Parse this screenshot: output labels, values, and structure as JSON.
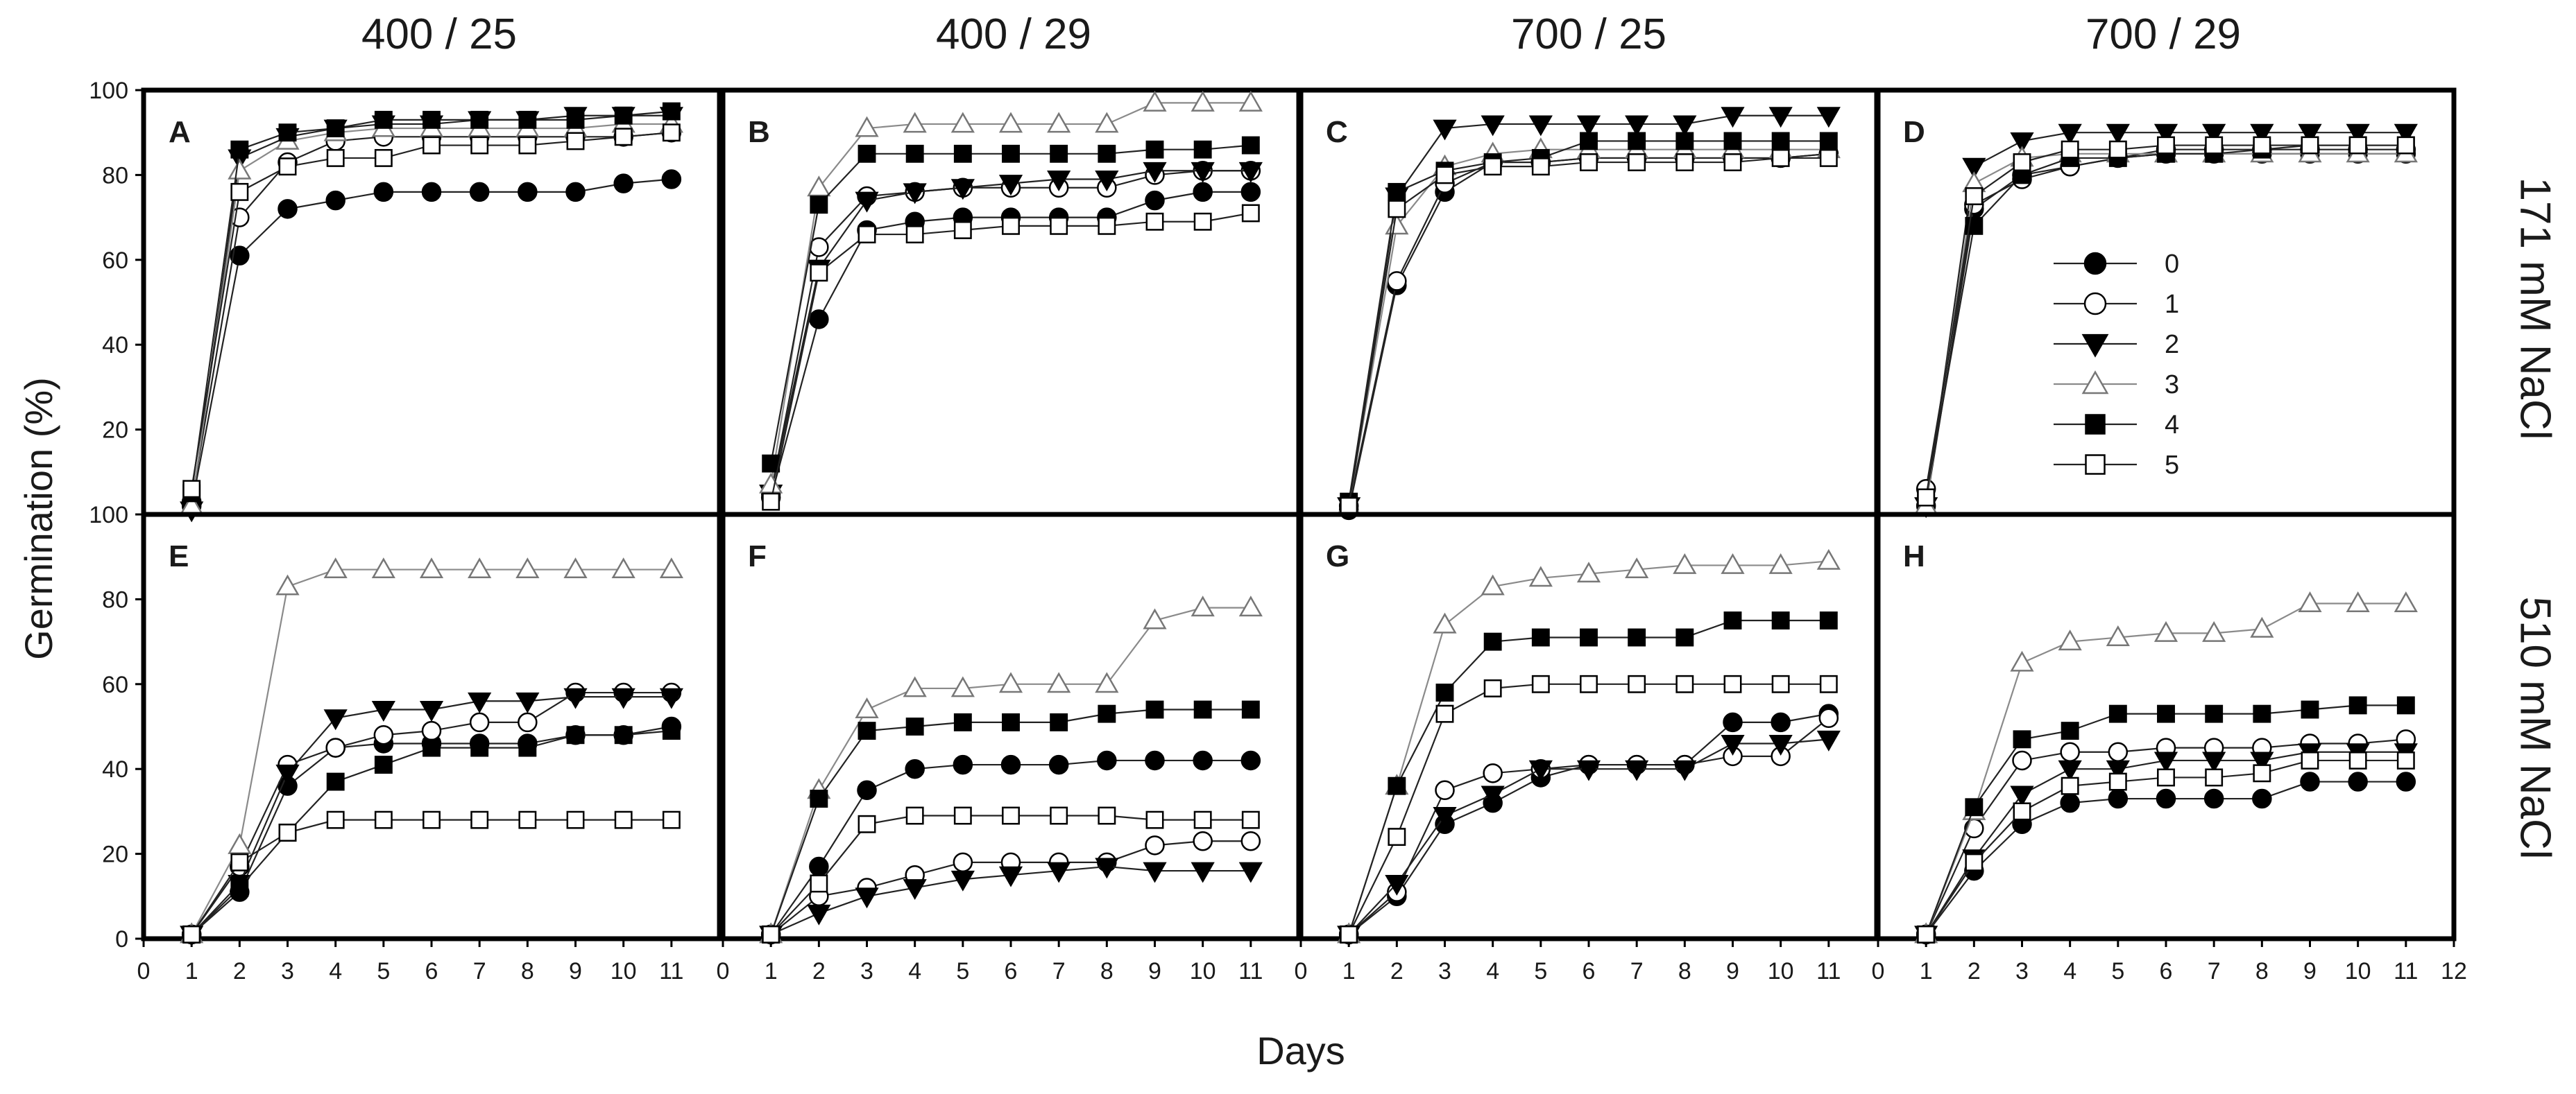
{
  "chart_data": {
    "type": "line",
    "xlabel": "Days",
    "ylabel": "Germination (%)",
    "column_titles": [
      "400 / 25",
      "400 / 29",
      "700 / 25",
      "700 / 29"
    ],
    "row_titles": [
      "171 mM NaCl",
      "510 mM NaCl"
    ],
    "xlim": [
      0,
      12
    ],
    "ylim": [
      0,
      100
    ],
    "x_ticks": [
      0,
      1,
      2,
      3,
      4,
      5,
      6,
      7,
      8,
      9,
      10,
      11
    ],
    "x_ticks_last_panel": [
      0,
      1,
      2,
      3,
      4,
      5,
      6,
      7,
      8,
      9,
      10,
      11,
      12
    ],
    "y_ticks": [
      0,
      20,
      40,
      60,
      80,
      100
    ],
    "x": [
      1,
      2,
      3,
      4,
      5,
      6,
      7,
      8,
      9,
      10,
      11
    ],
    "legend": {
      "position": "inside panel D, right side",
      "entries": [
        {
          "label": "0",
          "marker": "circle",
          "filled": true
        },
        {
          "label": "1",
          "marker": "circle",
          "filled": false
        },
        {
          "label": "2",
          "marker": "triangle-down",
          "filled": true
        },
        {
          "label": "3",
          "marker": "triangle-up",
          "filled": false
        },
        {
          "label": "4",
          "marker": "square",
          "filled": true
        },
        {
          "label": "5",
          "marker": "square",
          "filled": false
        }
      ]
    },
    "panels": [
      {
        "id": "A",
        "row": 0,
        "col": 0,
        "series": [
          {
            "name": "0",
            "values": [
              2,
              61,
              72,
              74,
              76,
              76,
              76,
              76,
              76,
              78,
              79
            ]
          },
          {
            "name": "1",
            "values": [
              3,
              70,
              83,
              88,
              89,
              89,
              89,
              89,
              89,
              89,
              90
            ]
          },
          {
            "name": "2",
            "values": [
              1,
              84,
              89,
              91,
              92,
              92,
              93,
              93,
              94,
              94,
              94
            ]
          },
          {
            "name": "3",
            "values": [
              2,
              81,
              88,
              90,
              91,
              91,
              91,
              91,
              91,
              92,
              92
            ]
          },
          {
            "name": "4",
            "values": [
              5,
              86,
              90,
              91,
              93,
              93,
              93,
              93,
              93,
              94,
              95
            ]
          },
          {
            "name": "5",
            "values": [
              6,
              76,
              82,
              84,
              84,
              87,
              87,
              87,
              88,
              89,
              90
            ]
          }
        ]
      },
      {
        "id": "B",
        "row": 0,
        "col": 1,
        "series": [
          {
            "name": "0",
            "values": [
              4,
              46,
              67,
              69,
              70,
              70,
              70,
              70,
              74,
              76,
              76
            ]
          },
          {
            "name": "1",
            "values": [
              5,
              63,
              75,
              76,
              77,
              77,
              77,
              77,
              80,
              81,
              81
            ]
          },
          {
            "name": "2",
            "values": [
              5,
              58,
              74,
              76,
              77,
              78,
              79,
              79,
              81,
              81,
              81
            ]
          },
          {
            "name": "3",
            "values": [
              7,
              77,
              91,
              92,
              92,
              92,
              92,
              92,
              97,
              97,
              97
            ]
          },
          {
            "name": "4",
            "values": [
              12,
              73,
              85,
              85,
              85,
              85,
              85,
              85,
              86,
              86,
              87
            ]
          },
          {
            "name": "5",
            "values": [
              3,
              57,
              66,
              66,
              67,
              68,
              68,
              68,
              69,
              69,
              71
            ]
          }
        ]
      },
      {
        "id": "C",
        "row": 0,
        "col": 2,
        "series": [
          {
            "name": "0",
            "values": [
              1,
              54,
              76,
              83,
              83,
              84,
              84,
              84,
              84,
              84,
              85
            ]
          },
          {
            "name": "1",
            "values": [
              2,
              55,
              78,
              83,
              83,
              84,
              84,
              84,
              84,
              84,
              85
            ]
          },
          {
            "name": "2",
            "values": [
              2,
              75,
              91,
              92,
              92,
              92,
              92,
              92,
              94,
              94,
              94
            ]
          },
          {
            "name": "3",
            "values": [
              2,
              68,
              82,
              85,
              86,
              86,
              86,
              86,
              86,
              86,
              86
            ]
          },
          {
            "name": "4",
            "values": [
              3,
              76,
              81,
              83,
              84,
              88,
              88,
              88,
              88,
              88,
              88
            ]
          },
          {
            "name": "5",
            "values": [
              2,
              72,
              80,
              82,
              82,
              83,
              83,
              83,
              83,
              84,
              84
            ]
          }
        ]
      },
      {
        "id": "D",
        "row": 0,
        "col": 3,
        "series": [
          {
            "name": "0",
            "values": [
              2,
              72,
              80,
              82,
              84,
              85,
              85,
              85,
              85,
              85,
              85
            ]
          },
          {
            "name": "1",
            "values": [
              6,
              73,
              79,
              82,
              84,
              86,
              86,
              86,
              86,
              86,
              86
            ]
          },
          {
            "name": "2",
            "values": [
              2,
              82,
              88,
              90,
              90,
              90,
              90,
              90,
              90,
              90,
              90
            ]
          },
          {
            "name": "3",
            "values": [
              2,
              78,
              84,
              85,
              85,
              85,
              85,
              85,
              85,
              85,
              85
            ]
          },
          {
            "name": "4",
            "values": [
              4,
              68,
              80,
              84,
              84,
              85,
              85,
              86,
              87,
              87,
              87
            ]
          },
          {
            "name": "5",
            "values": [
              4,
              75,
              83,
              86,
              86,
              87,
              87,
              87,
              87,
              87,
              87
            ]
          }
        ]
      },
      {
        "id": "E",
        "row": 1,
        "col": 0,
        "series": [
          {
            "name": "0",
            "values": [
              1,
              11,
              36,
              45,
              46,
              46,
              46,
              46,
              48,
              48,
              50
            ]
          },
          {
            "name": "1",
            "values": [
              1,
              17,
              41,
              45,
              48,
              49,
              51,
              51,
              58,
              58,
              58
            ]
          },
          {
            "name": "2",
            "values": [
              1,
              13,
              39,
              52,
              54,
              54,
              56,
              56,
              57,
              57,
              57
            ]
          },
          {
            "name": "3",
            "values": [
              1,
              22,
              83,
              87,
              87,
              87,
              87,
              87,
              87,
              87,
              87
            ]
          },
          {
            "name": "4",
            "values": [
              1,
              12,
              25,
              37,
              41,
              45,
              45,
              45,
              48,
              48,
              49
            ]
          },
          {
            "name": "5",
            "values": [
              1,
              18,
              25,
              28,
              28,
              28,
              28,
              28,
              28,
              28,
              28
            ]
          }
        ]
      },
      {
        "id": "F",
        "row": 1,
        "col": 1,
        "series": [
          {
            "name": "0",
            "values": [
              1,
              17,
              35,
              40,
              41,
              41,
              41,
              42,
              42,
              42,
              42
            ]
          },
          {
            "name": "1",
            "values": [
              1,
              10,
              12,
              15,
              18,
              18,
              18,
              18,
              22,
              23,
              23
            ]
          },
          {
            "name": "2",
            "values": [
              1,
              6,
              10,
              12,
              14,
              15,
              16,
              17,
              16,
              16,
              16
            ]
          },
          {
            "name": "3",
            "values": [
              1,
              35,
              54,
              59,
              59,
              60,
              60,
              60,
              75,
              78,
              78
            ]
          },
          {
            "name": "4",
            "values": [
              1,
              33,
              49,
              50,
              51,
              51,
              51,
              53,
              54,
              54,
              54
            ]
          },
          {
            "name": "5",
            "values": [
              1,
              13,
              27,
              29,
              29,
              29,
              29,
              29,
              28,
              28,
              28
            ]
          }
        ]
      },
      {
        "id": "G",
        "row": 1,
        "col": 2,
        "series": [
          {
            "name": "0",
            "values": [
              1,
              10,
              27,
              32,
              38,
              41,
              41,
              41,
              51,
              51,
              53
            ]
          },
          {
            "name": "1",
            "values": [
              1,
              11,
              35,
              39,
              40,
              41,
              41,
              41,
              43,
              43,
              52
            ]
          },
          {
            "name": "2",
            "values": [
              1,
              13,
              29,
              34,
              40,
              40,
              40,
              40,
              46,
              46,
              47
            ]
          },
          {
            "name": "3",
            "values": [
              1,
              36,
              74,
              83,
              85,
              86,
              87,
              88,
              88,
              88,
              89
            ]
          },
          {
            "name": "4",
            "values": [
              1,
              36,
              58,
              70,
              71,
              71,
              71,
              71,
              75,
              75,
              75
            ]
          },
          {
            "name": "5",
            "values": [
              1,
              24,
              53,
              59,
              60,
              60,
              60,
              60,
              60,
              60,
              60
            ]
          }
        ]
      },
      {
        "id": "H",
        "row": 1,
        "col": 3,
        "series": [
          {
            "name": "0",
            "values": [
              1,
              16,
              27,
              32,
              33,
              33,
              33,
              33,
              37,
              37,
              37
            ]
          },
          {
            "name": "1",
            "values": [
              1,
              26,
              42,
              44,
              44,
              45,
              45,
              45,
              46,
              46,
              47
            ]
          },
          {
            "name": "2",
            "values": [
              1,
              19,
              34,
              40,
              40,
              42,
              42,
              42,
              44,
              44,
              44
            ]
          },
          {
            "name": "3",
            "values": [
              1,
              30,
              65,
              70,
              71,
              72,
              72,
              73,
              79,
              79,
              79
            ]
          },
          {
            "name": "4",
            "values": [
              1,
              31,
              47,
              49,
              53,
              53,
              53,
              53,
              54,
              55,
              55
            ]
          },
          {
            "name": "5",
            "values": [
              1,
              18,
              30,
              36,
              37,
              38,
              38,
              39,
              42,
              42,
              42
            ]
          }
        ]
      }
    ]
  }
}
